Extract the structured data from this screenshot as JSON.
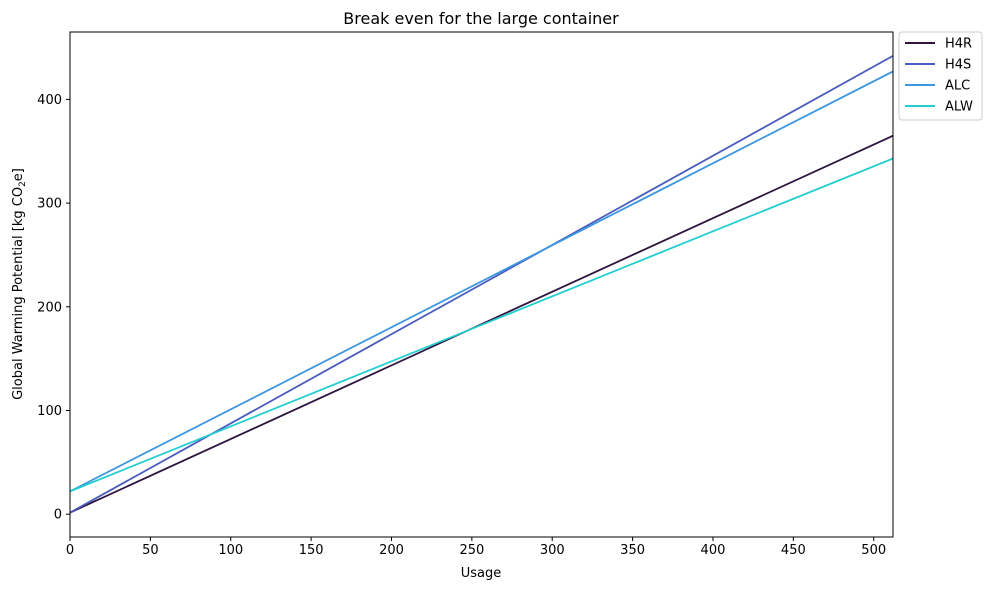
{
  "chart_data": {
    "type": "line",
    "title": "Break even for the large container",
    "xlabel": "Usage",
    "ylabel_prefix": "Global Warming Potential [kg CO",
    "ylabel_sub": "2",
    "ylabel_suffix": "e]",
    "xlim": [
      0,
      512
    ],
    "ylim": [
      -22,
      465
    ],
    "xticks": [
      0,
      50,
      100,
      150,
      200,
      250,
      300,
      350,
      400,
      450,
      500
    ],
    "yticks": [
      0,
      100,
      200,
      300,
      400
    ],
    "grid": false,
    "legend_position": "outside top-right",
    "series": [
      {
        "name": "H4R",
        "color": "#2d1540",
        "x": [
          0,
          512
        ],
        "y": [
          1.5,
          365
        ]
      },
      {
        "name": "H4S",
        "color": "#4a5cbe",
        "x": [
          0,
          512
        ],
        "y": [
          1.5,
          442
        ]
      },
      {
        "name": "ALC",
        "color": "#3d97e0",
        "x": [
          0,
          512
        ],
        "y": [
          22,
          427
        ]
      },
      {
        "name": "ALW",
        "color": "#22ced0",
        "x": [
          0,
          512
        ],
        "y": [
          22,
          343
        ]
      }
    ]
  }
}
